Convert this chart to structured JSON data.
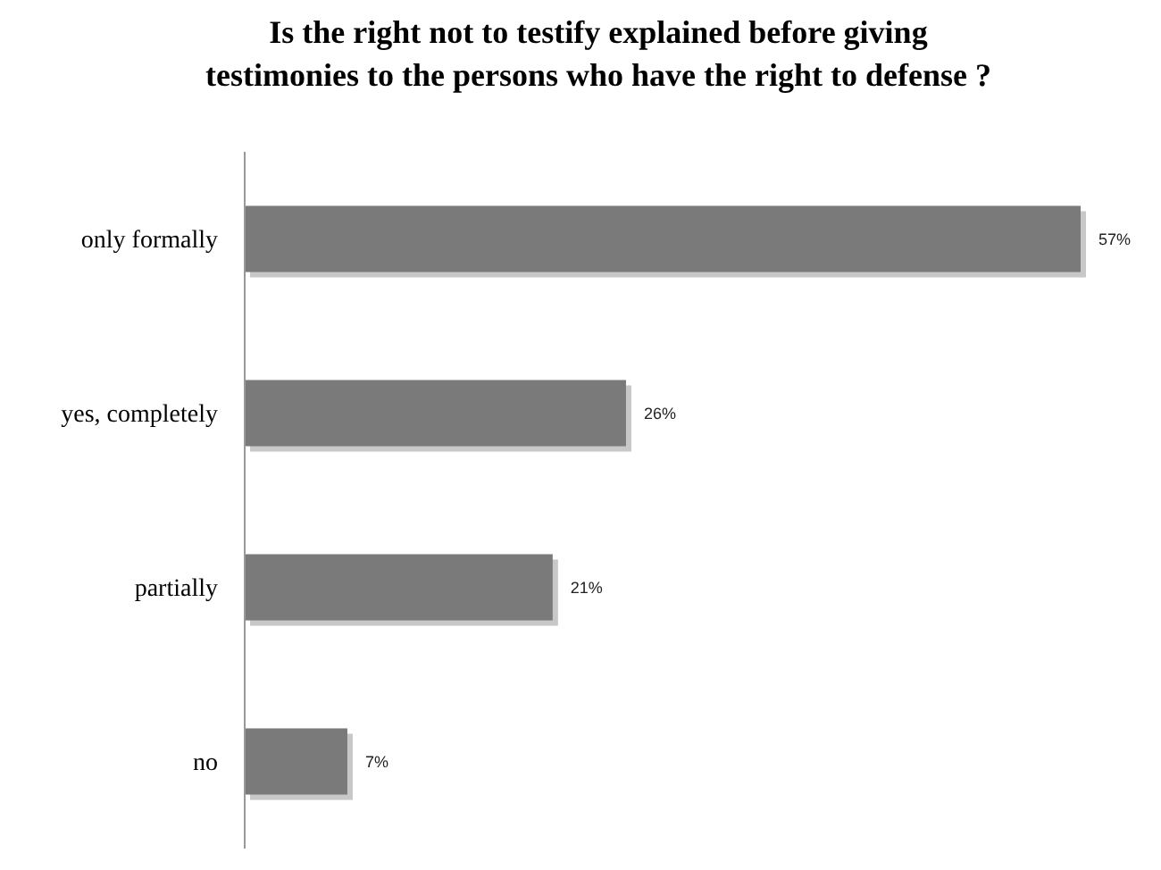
{
  "chart_data": {
    "type": "bar",
    "orientation": "horizontal",
    "title": "Is the right not to testify explained before giving testimonies to the persons who have the right to defense ?",
    "categories": [
      "only formally",
      "yes, completely",
      "partially",
      "no"
    ],
    "values": [
      57,
      26,
      21,
      7
    ],
    "value_labels": [
      "57%",
      "26%",
      "21%",
      "7%"
    ],
    "color": "#7a7a7a"
  }
}
